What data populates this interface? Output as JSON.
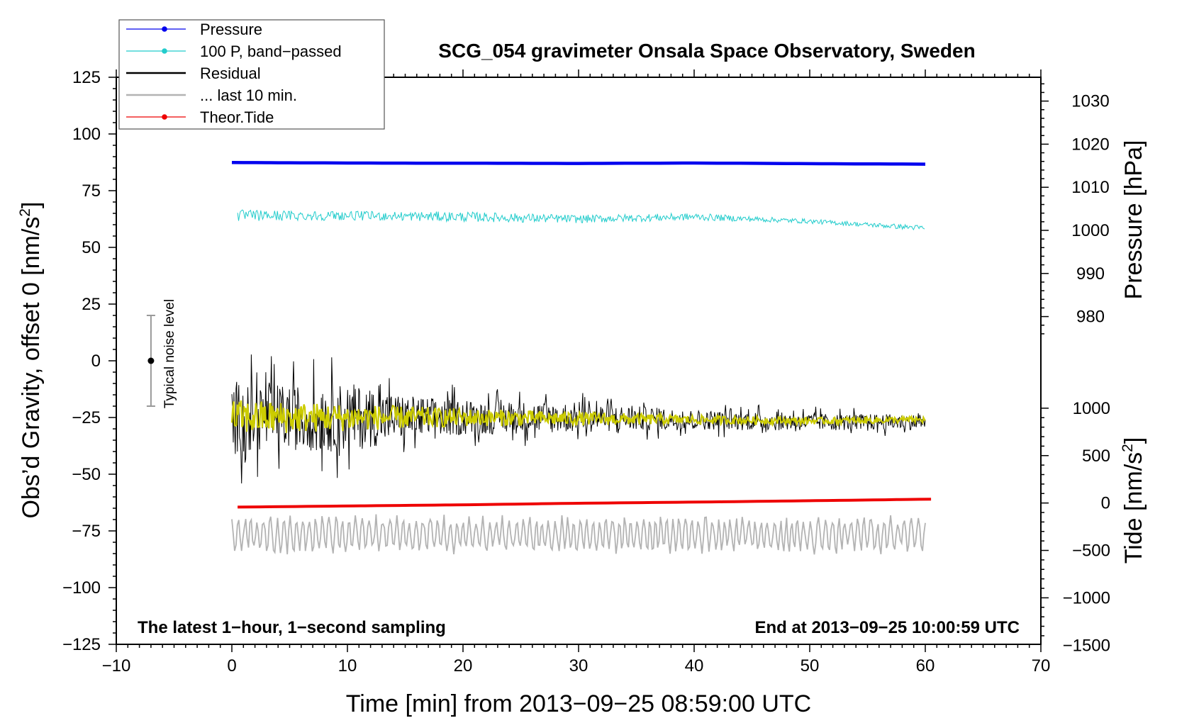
{
  "chart_data": {
    "type": "line",
    "title": "SCG_054 gravimeter Onsala Space Observatory, Sweden",
    "xlabel": "Time [min] from 2013−09−25 08:59:00 UTC",
    "ylabel_left": "Obs’d Gravity, offset 0 [nm/s",
    "ylabel_left_sup": "2",
    "ylabel_left_end": "]",
    "ylabel_right_pressure": "Pressure [hPa]",
    "ylabel_right_tide": "Tide [nm/s",
    "ylabel_right_tide_sup": "2",
    "ylabel_right_tide_end": "]",
    "xlim": [
      -10,
      70
    ],
    "ylim_left": [
      -125,
      125
    ],
    "x_ticks": [
      -10,
      0,
      10,
      20,
      30,
      40,
      50,
      60,
      70
    ],
    "x_tick_labels": [
      "−10",
      "0",
      "10",
      "20",
      "30",
      "40",
      "50",
      "60",
      "70"
    ],
    "y_ticks_left": [
      125,
      100,
      75,
      50,
      25,
      0,
      -25,
      -50,
      -75,
      -100,
      -125
    ],
    "y_tick_labels_left": [
      "125",
      "100",
      "75",
      "50",
      "25",
      "0",
      "−25",
      "−50",
      "−75",
      "−100",
      "−125"
    ],
    "pressure_axis": {
      "ticks": [
        1030,
        1020,
        1010,
        1000,
        990,
        980
      ],
      "tick_labels": [
        "1030",
        "1020",
        "1010",
        "1000",
        "990",
        "980"
      ],
      "left_value_at_1000": 57.5,
      "left_units_per_hPa": 1.9
    },
    "tide_axis": {
      "ticks": [
        1000,
        500,
        0,
        -500,
        -1000,
        -1500
      ],
      "tick_labels": [
        "1000",
        "500",
        "0",
        "−500",
        "−1000",
        "−1500"
      ],
      "left_value_at_0": -62.7,
      "left_units_per_nm": 0.0418
    },
    "series": [
      {
        "name": "Pressure",
        "color": "#0000ee",
        "axis": "left",
        "x": [
          0,
          10,
          20,
          30,
          40,
          50,
          60
        ],
        "values": [
          87.4,
          87.2,
          87.1,
          87.0,
          87.2,
          86.9,
          86.7
        ]
      },
      {
        "name": "100 P, band−passed",
        "color": "#22cccc",
        "axis": "left",
        "x": [
          0,
          10,
          20,
          30,
          40,
          45,
          50,
          55,
          60
        ],
        "values": [
          64.0,
          64.0,
          63.5,
          62.5,
          63.5,
          62.5,
          61.5,
          60.0,
          58.5
        ],
        "noise_amplitude": [
          2.6,
          2.0,
          2.2,
          1.8,
          1.6,
          1.2,
          1.0,
          1.0,
          1.2
        ]
      },
      {
        "name": "Residual",
        "color": "#000000",
        "axis": "left",
        "x": [
          0,
          5,
          10,
          15,
          20,
          30,
          40,
          50,
          60
        ],
        "values": [
          -25,
          -25,
          -25,
          -25,
          -25,
          -25,
          -26,
          -27,
          -27
        ],
        "noise_amplitude": [
          30,
          26,
          28,
          18,
          14,
          12,
          8,
          7,
          6
        ]
      },
      {
        "name": "Residual (smoothed)",
        "color": "#cccc00",
        "axis": "left",
        "x": [
          0,
          10,
          20,
          30,
          40,
          50,
          60
        ],
        "values": [
          -25,
          -25,
          -25,
          -25.5,
          -26,
          -26.5,
          -26
        ],
        "noise_amplitude": [
          8,
          6,
          4,
          3,
          2,
          1.5,
          1.5
        ]
      },
      {
        "name": "... last 10 min.",
        "color": "#b3b3b3",
        "axis": "left",
        "x": [
          0,
          60
        ],
        "values": [
          -76.5,
          -76.5
        ],
        "noise_amplitude": [
          9,
          9
        ]
      },
      {
        "name": "Theor.Tide",
        "color": "#ee0000",
        "axis": "left",
        "x": [
          0.5,
          10,
          20,
          30,
          40,
          50,
          60.5
        ],
        "values": [
          -64.5,
          -64.0,
          -63.5,
          -62.8,
          -62.3,
          -61.7,
          -61.0
        ]
      }
    ],
    "noise_marker": {
      "x": -7,
      "center": 0,
      "half_range": 20,
      "label": "Typical noise level"
    },
    "annotations": {
      "bottom_left": "The latest 1−hour, 1−second sampling",
      "bottom_right": "End at 2013−09−25 10:00:59 UTC"
    },
    "legend": {
      "placement": "top-left",
      "entries": [
        {
          "label": "Pressure",
          "color": "#0000ee",
          "marker": true
        },
        {
          "label": "100 P, band−passed",
          "color": "#22cccc",
          "marker": true
        },
        {
          "label": "Residual",
          "color": "#000000",
          "marker": false
        },
        {
          "label": "... last 10 min.",
          "color": "#b3b3b3",
          "marker": false
        },
        {
          "label": "Theor.Tide",
          "color": "#ee0000",
          "marker": true
        }
      ]
    },
    "grid": false
  }
}
